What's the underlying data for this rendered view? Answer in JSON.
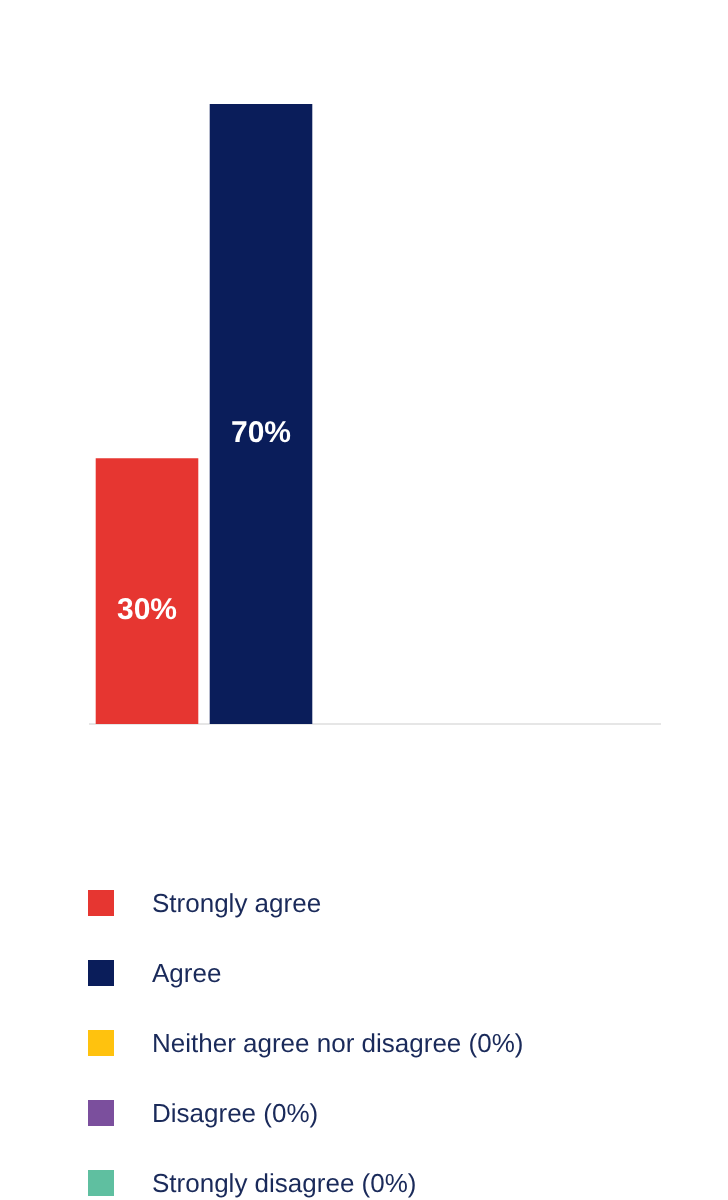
{
  "chart_data": {
    "type": "bar",
    "categories": [
      null
    ],
    "ylim": [
      0,
      70
    ],
    "legend": "bottom",
    "grid": false,
    "series": [
      {
        "name": "Strongly agree",
        "color": "#e63631",
        "values": [
          30
        ],
        "value_labels": [
          "30%"
        ]
      },
      {
        "name": "Agree",
        "color": "#0a1d5a",
        "values": [
          70
        ],
        "value_labels": [
          "70%"
        ]
      },
      {
        "name": "Neither agree nor disagree (0%)",
        "color": "#ffc20e",
        "values": [
          0
        ],
        "value_labels": [
          null
        ]
      },
      {
        "name": "Disagree (0%)",
        "color": "#7b4f9d",
        "values": [
          0
        ],
        "value_labels": [
          null
        ]
      },
      {
        "name": "Strongly disagree (0%)",
        "color": "#5fbfa0",
        "values": [
          0
        ],
        "value_labels": [
          null
        ]
      }
    ]
  }
}
